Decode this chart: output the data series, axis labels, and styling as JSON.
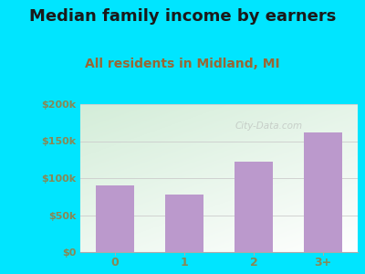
{
  "title": "Median family income by earners",
  "subtitle": "All residents in Midland, MI",
  "categories": [
    "0",
    "1",
    "2",
    "3+"
  ],
  "values": [
    90000,
    78000,
    122000,
    162000
  ],
  "bar_color": "#bb99cc",
  "background_outer": "#00e5ff",
  "background_inner_top_left": "#d4edda",
  "background_inner_bottom_right": "#f8f8f8",
  "title_color": "#1a1a1a",
  "subtitle_color": "#996633",
  "tick_label_color": "#888855",
  "ylim": [
    0,
    200000
  ],
  "yticks": [
    0,
    50000,
    100000,
    150000,
    200000
  ],
  "ytick_labels": [
    "$0",
    "$50k",
    "$100k",
    "$150k",
    "$200k"
  ],
  "title_fontsize": 13,
  "subtitle_fontsize": 10,
  "watermark": "City-Data.com"
}
